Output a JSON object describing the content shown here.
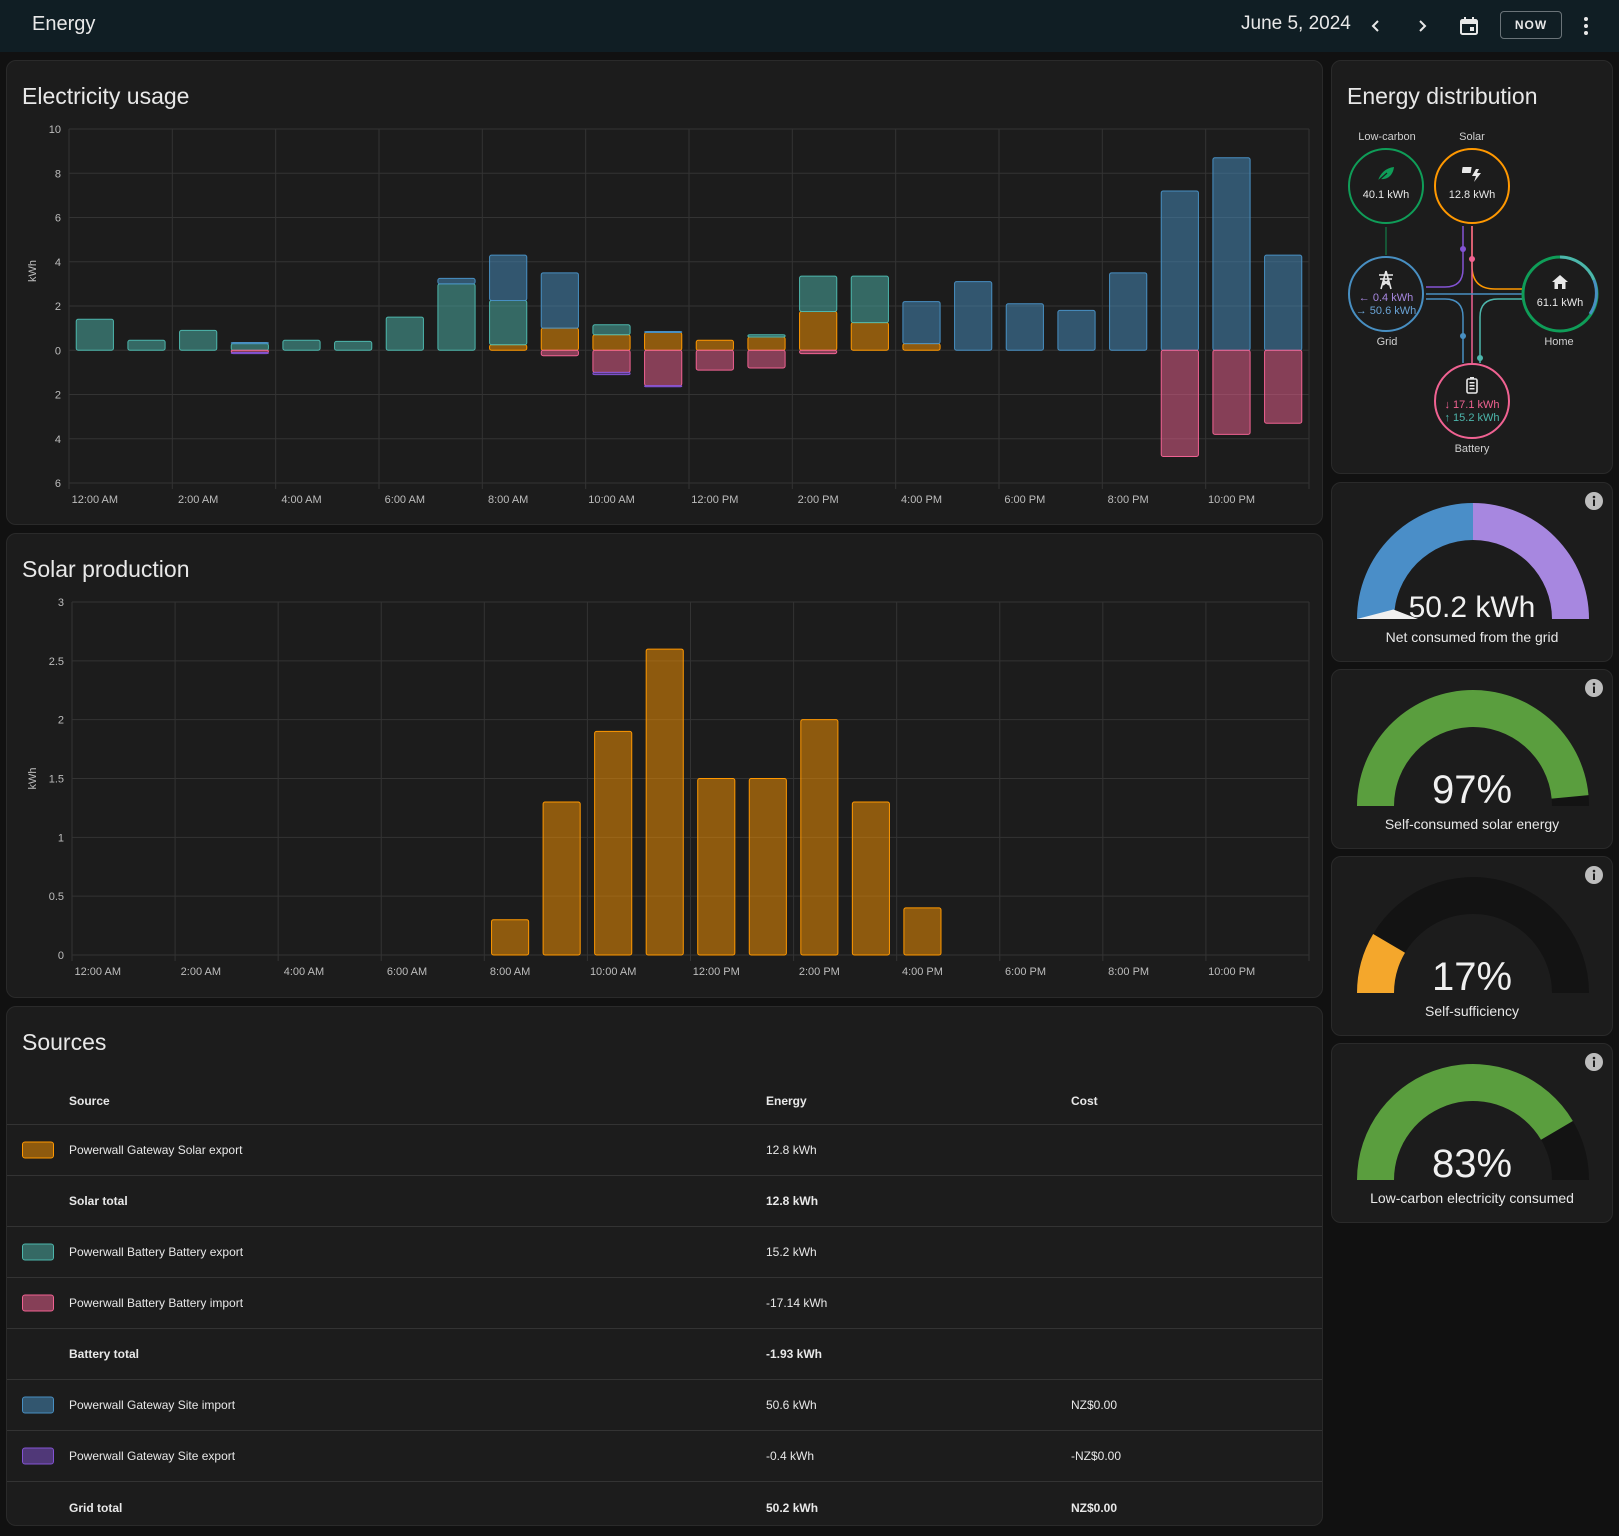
{
  "header": {
    "title": "Energy",
    "date": "June 5, 2024",
    "now_label": "NOW"
  },
  "colors": {
    "solar": "#ff9800",
    "battery_out": "#4db6ac",
    "battery_in": "#f06292",
    "grid_import": "#488fc2",
    "grid_export": "#8353d4",
    "low_carbon": "#0f9d58",
    "gauge_green": "#5a9e3e",
    "gauge_orange": "#f4a72c",
    "gauge_blue": "#4a8ec8",
    "gauge_purple": "#a787e0"
  },
  "usage": {
    "title": "Electricity usage",
    "chart_data": {
      "type": "bar",
      "ylabel": "kWh",
      "y_ticks_above": [
        "10",
        "8",
        "6",
        "4",
        "2",
        "0"
      ],
      "y_ticks_below": [
        "2",
        "4",
        "6"
      ],
      "ylim": [
        -6,
        10
      ],
      "x_tick_labels": [
        "12:00 AM",
        "2:00 AM",
        "4:00 AM",
        "6:00 AM",
        "8:00 AM",
        "10:00 AM",
        "12:00 PM",
        "2:00 PM",
        "4:00 PM",
        "6:00 PM",
        "8:00 PM",
        "10:00 PM"
      ],
      "series": [
        {
          "name": "Powerwall Gateway Solar export",
          "color": "#ff9800",
          "values": [
            0,
            0,
            0,
            0,
            0,
            0,
            0,
            0,
            0.25,
            1.0,
            0.7,
            0.8,
            0.45,
            0.6,
            1.75,
            1.25,
            0.3,
            0,
            0,
            0,
            0,
            0,
            0,
            0
          ]
        },
        {
          "name": "Powerwall Battery Battery export",
          "color": "#4db6ac",
          "values": [
            1.4,
            0.45,
            0.9,
            0.3,
            0.45,
            0.4,
            1.5,
            3.0,
            2.0,
            0,
            0.45,
            0,
            0,
            0.1,
            1.6,
            2.1,
            0,
            0,
            0,
            0,
            0,
            0,
            0,
            0
          ]
        },
        {
          "name": "Powerwall Gateway Site import",
          "color": "#488fc2",
          "values": [
            0,
            0,
            0,
            0.05,
            0,
            0,
            0,
            0.25,
            2.05,
            2.5,
            0,
            0.05,
            0,
            0,
            0,
            0,
            1.9,
            3.1,
            2.1,
            1.8,
            3.5,
            7.2,
            8.7,
            4.3
          ]
        },
        {
          "name": "Powerwall Battery Battery import",
          "color": "#f06292",
          "values": [
            0,
            0,
            0,
            -0.1,
            0,
            0,
            0,
            0,
            0,
            -0.25,
            -1.0,
            -1.6,
            -0.9,
            -0.8,
            -0.15,
            0,
            0,
            0,
            0,
            0,
            0,
            -4.8,
            -3.8,
            -3.3
          ]
        },
        {
          "name": "Powerwall Gateway Site export",
          "color": "#8353d4",
          "values": [
            0,
            0,
            0,
            -0.05,
            0,
            0,
            0,
            0,
            0,
            0,
            -0.1,
            -0.05,
            0,
            0,
            0,
            0,
            0,
            0,
            0,
            0,
            0,
            0,
            0,
            0
          ]
        }
      ]
    }
  },
  "solar": {
    "title": "Solar production",
    "chart_data": {
      "type": "bar",
      "ylabel": "kWh",
      "ylim": [
        0,
        3
      ],
      "y_ticks": [
        "3",
        "2.5",
        "2",
        "1.5",
        "1",
        "0.5",
        "0"
      ],
      "x_tick_labels": [
        "12:00 AM",
        "2:00 AM",
        "4:00 AM",
        "6:00 AM",
        "8:00 AM",
        "10:00 AM",
        "12:00 PM",
        "2:00 PM",
        "4:00 PM",
        "6:00 PM",
        "8:00 PM",
        "10:00 PM"
      ],
      "series": [
        {
          "name": "Powerwall Gateway Solar export",
          "color": "#ff9800",
          "values": [
            0,
            0,
            0,
            0,
            0,
            0,
            0,
            0,
            0.3,
            1.3,
            1.9,
            2.6,
            1.5,
            1.5,
            2.0,
            1.3,
            0.4,
            0,
            0,
            0,
            0,
            0,
            0,
            0
          ]
        }
      ]
    }
  },
  "sources": {
    "title": "Sources",
    "columns": {
      "source": "Source",
      "energy": "Energy",
      "cost": "Cost"
    },
    "rows": [
      {
        "swatch": "solar",
        "name": "Powerwall Gateway Solar export",
        "energy": "12.8 kWh",
        "cost": "",
        "total": false
      },
      {
        "swatch": "",
        "name": "Solar total",
        "energy": "12.8 kWh",
        "cost": "",
        "total": true
      },
      {
        "swatch": "battery_out",
        "name": "Powerwall Battery Battery export",
        "energy": "15.2 kWh",
        "cost": "",
        "total": false
      },
      {
        "swatch": "battery_in",
        "name": "Powerwall Battery Battery import",
        "energy": "-17.14 kWh",
        "cost": "",
        "total": false
      },
      {
        "swatch": "",
        "name": "Battery total",
        "energy": "-1.93 kWh",
        "cost": "",
        "total": true
      },
      {
        "swatch": "grid_import",
        "name": "Powerwall Gateway Site import",
        "energy": "50.6 kWh",
        "cost": "NZ$0.00",
        "total": false
      },
      {
        "swatch": "grid_export",
        "name": "Powerwall Gateway Site export",
        "energy": "-0.4 kWh",
        "cost": "-NZ$0.00",
        "total": false
      },
      {
        "swatch": "",
        "name": "Grid total",
        "energy": "50.2 kWh",
        "cost": "NZ$0.00",
        "total": true
      }
    ]
  },
  "distribution": {
    "title": "Energy distribution",
    "low_carbon": {
      "label": "Low-carbon",
      "value": "40.1 kWh"
    },
    "solar": {
      "label": "Solar",
      "value": "12.8 kWh"
    },
    "grid": {
      "label": "Grid",
      "export": "0.4 kWh",
      "import": "50.6 kWh"
    },
    "home": {
      "label": "Home",
      "value": "61.1 kWh"
    },
    "battery": {
      "label": "Battery",
      "in": "17.1 kWh",
      "out": "15.2 kWh"
    }
  },
  "gauges": [
    {
      "value": "50.2 kWh",
      "label": "Net consumed from the grid",
      "fraction": 0.5,
      "style": "grid"
    },
    {
      "value": "97%",
      "label": "Self-consumed solar energy",
      "fraction": 0.97,
      "style": "green"
    },
    {
      "value": "17%",
      "label": "Self-sufficiency",
      "fraction": 0.17,
      "style": "orange"
    },
    {
      "value": "83%",
      "label": "Low-carbon electricity consumed",
      "fraction": 0.83,
      "style": "green"
    }
  ]
}
